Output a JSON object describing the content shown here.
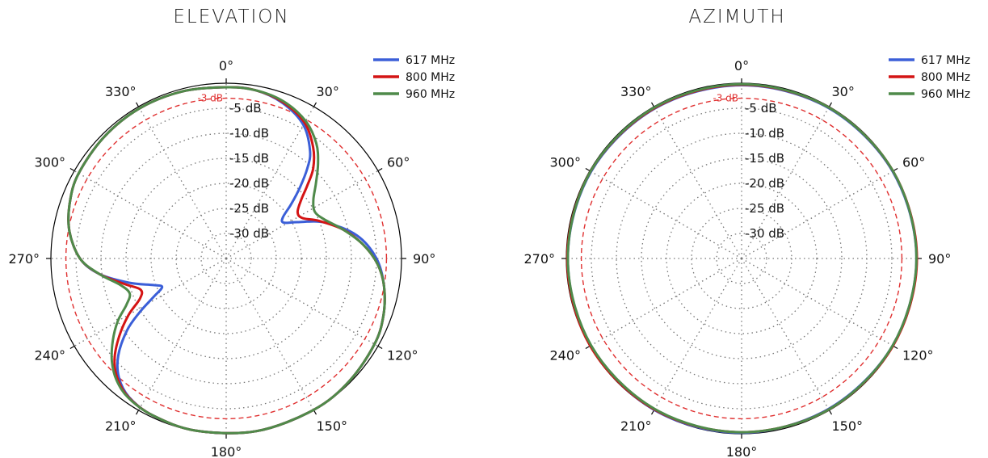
{
  "chart_data": [
    {
      "type": "polar-line",
      "title": "ELEVATION",
      "angle_unit": "°",
      "angle_ticks": [
        0,
        30,
        60,
        90,
        120,
        150,
        180,
        210,
        240,
        270,
        300,
        330
      ],
      "angle_tick_labels": [
        "0°",
        "30°",
        "60°",
        "90°",
        "120°",
        "150°",
        "180°",
        "210°",
        "240°",
        "270°",
        "300°",
        "330°"
      ],
      "radial_range_db": [
        -35,
        0
      ],
      "radial_ticks_db": [
        -5,
        -10,
        -15,
        -20,
        -25,
        -30
      ],
      "radial_tick_labels": [
        "-5 dB",
        "-10 dB",
        "-15 dB",
        "-20 dB",
        "-25 dB",
        "-30 dB"
      ],
      "reference_line": {
        "value_db": -3,
        "label": "-3 dB",
        "color": "#e03030"
      },
      "grid": true,
      "legend_position": "top-right",
      "series": [
        {
          "name": "617 MHz",
          "color": "#3b5fd8",
          "points": [
            [
              0,
              -0.8
            ],
            [
              10,
              -0.9
            ],
            [
              20,
              -2.0
            ],
            [
              30,
              -4.2
            ],
            [
              38,
              -7.8
            ],
            [
              42,
              -10.8
            ],
            [
              46,
              -14.5
            ],
            [
              50,
              -18.0
            ],
            [
              54,
              -21.0
            ],
            [
              58,
              -21.5
            ],
            [
              63,
              -19.0
            ],
            [
              70,
              -14.0
            ],
            [
              80,
              -8.5
            ],
            [
              90,
              -5.0
            ],
            [
              100,
              -3.0
            ],
            [
              110,
              -1.6
            ],
            [
              120,
              -0.8
            ],
            [
              135,
              -0.3
            ],
            [
              150,
              -0.1
            ],
            [
              170,
              0.0
            ],
            [
              190,
              -0.1
            ],
            [
              205,
              -0.4
            ],
            [
              215,
              -1.2
            ],
            [
              222,
              -3.0
            ],
            [
              228,
              -6.0
            ],
            [
              234,
              -10.5
            ],
            [
              238,
              -14.5
            ],
            [
              242,
              -18.5
            ],
            [
              246,
              -21.0
            ],
            [
              250,
              -19.5
            ],
            [
              256,
              -15.0
            ],
            [
              263,
              -9.5
            ],
            [
              270,
              -5.8
            ],
            [
              280,
              -3.2
            ],
            [
              290,
              -1.8
            ],
            [
              300,
              -1.0
            ],
            [
              315,
              -0.6
            ],
            [
              330,
              -0.4
            ],
            [
              345,
              -0.5
            ],
            [
              360,
              -0.8
            ]
          ]
        },
        {
          "name": "800 MHz",
          "color": "#d41414",
          "points": [
            [
              0,
              -0.8
            ],
            [
              10,
              -0.9
            ],
            [
              20,
              -1.8
            ],
            [
              30,
              -3.7
            ],
            [
              38,
              -6.8
            ],
            [
              44,
              -10.0
            ],
            [
              48,
              -13.2
            ],
            [
              52,
              -16.0
            ],
            [
              57,
              -18.0
            ],
            [
              62,
              -17.8
            ],
            [
              68,
              -15.0
            ],
            [
              76,
              -11.0
            ],
            [
              84,
              -7.6
            ],
            [
              92,
              -4.8
            ],
            [
              100,
              -3.0
            ],
            [
              110,
              -1.6
            ],
            [
              120,
              -0.8
            ],
            [
              135,
              -0.3
            ],
            [
              150,
              -0.1
            ],
            [
              170,
              0.0
            ],
            [
              190,
              -0.1
            ],
            [
              205,
              -0.4
            ],
            [
              215,
              -1.1
            ],
            [
              222,
              -2.6
            ],
            [
              228,
              -5.0
            ],
            [
              234,
              -8.6
            ],
            [
              240,
              -12.5
            ],
            [
              245,
              -16.0
            ],
            [
              250,
              -16.8
            ],
            [
              256,
              -14.0
            ],
            [
              263,
              -9.5
            ],
            [
              270,
              -5.8
            ],
            [
              280,
              -3.2
            ],
            [
              290,
              -1.8
            ],
            [
              300,
              -1.0
            ],
            [
              315,
              -0.6
            ],
            [
              330,
              -0.4
            ],
            [
              345,
              -0.5
            ],
            [
              360,
              -0.8
            ]
          ]
        },
        {
          "name": "960 MHz",
          "color": "#4f8a4a",
          "points": [
            [
              0,
              -0.8
            ],
            [
              10,
              -0.9
            ],
            [
              20,
              -1.6
            ],
            [
              30,
              -3.3
            ],
            [
              38,
              -5.8
            ],
            [
              44,
              -8.6
            ],
            [
              50,
              -11.6
            ],
            [
              56,
              -14.0
            ],
            [
              62,
              -15.0
            ],
            [
              68,
              -14.0
            ],
            [
              76,
              -11.0
            ],
            [
              84,
              -7.6
            ],
            [
              92,
              -4.8
            ],
            [
              100,
              -3.0
            ],
            [
              110,
              -1.6
            ],
            [
              120,
              -0.8
            ],
            [
              135,
              -0.3
            ],
            [
              150,
              -0.1
            ],
            [
              170,
              0.0
            ],
            [
              190,
              -0.1
            ],
            [
              205,
              -0.4
            ],
            [
              215,
              -1.0
            ],
            [
              222,
              -2.3
            ],
            [
              228,
              -4.3
            ],
            [
              234,
              -7.0
            ],
            [
              240,
              -10.0
            ],
            [
              245,
              -13.0
            ],
            [
              250,
              -14.5
            ],
            [
              256,
              -13.2
            ],
            [
              263,
              -9.5
            ],
            [
              270,
              -5.8
            ],
            [
              280,
              -3.2
            ],
            [
              290,
              -1.8
            ],
            [
              300,
              -1.0
            ],
            [
              315,
              -0.6
            ],
            [
              330,
              -0.4
            ],
            [
              345,
              -0.5
            ],
            [
              360,
              -0.8
            ]
          ]
        }
      ]
    },
    {
      "type": "polar-line",
      "title": "AZIMUTH",
      "angle_unit": "°",
      "angle_ticks": [
        0,
        30,
        60,
        90,
        120,
        150,
        180,
        210,
        240,
        270,
        300,
        330
      ],
      "angle_tick_labels": [
        "0°",
        "30°",
        "60°",
        "90°",
        "120°",
        "150°",
        "180°",
        "210°",
        "240°",
        "270°",
        "300°",
        "330°"
      ],
      "radial_range_db": [
        -35,
        0
      ],
      "radial_ticks_db": [
        -5,
        -10,
        -15,
        -20,
        -25,
        -30
      ],
      "radial_tick_labels": [
        "-5 dB",
        "-10 dB",
        "-15 dB",
        "-20 dB",
        "-25 dB",
        "-30 dB"
      ],
      "reference_line": {
        "value_db": -3,
        "label": "-3 dB",
        "color": "#e03030"
      },
      "grid": true,
      "legend_position": "top-right",
      "series": [
        {
          "name": "617 MHz",
          "color": "#3b5fd8",
          "points": [
            [
              0,
              -0.4
            ],
            [
              30,
              -0.3
            ],
            [
              60,
              -0.2
            ],
            [
              90,
              -0.1
            ],
            [
              120,
              -0.2
            ],
            [
              150,
              -0.3
            ],
            [
              180,
              -0.2
            ],
            [
              210,
              -0.1
            ],
            [
              240,
              -0.2
            ],
            [
              270,
              -0.3
            ],
            [
              300,
              -0.3
            ],
            [
              330,
              -0.4
            ],
            [
              360,
              -0.4
            ]
          ]
        },
        {
          "name": "800 MHz",
          "color": "#d41414",
          "points": [
            [
              0,
              -0.3
            ],
            [
              30,
              -0.2
            ],
            [
              60,
              -0.1
            ],
            [
              90,
              0.0
            ],
            [
              120,
              -0.1
            ],
            [
              150,
              -0.2
            ],
            [
              180,
              -0.3
            ],
            [
              210,
              -0.2
            ],
            [
              240,
              -0.1
            ],
            [
              270,
              -0.2
            ],
            [
              300,
              -0.2
            ],
            [
              330,
              -0.3
            ],
            [
              360,
              -0.3
            ]
          ]
        },
        {
          "name": "960 MHz",
          "color": "#4f8a4a",
          "points": [
            [
              0,
              -0.2
            ],
            [
              30,
              -0.2
            ],
            [
              60,
              -0.1
            ],
            [
              90,
              -0.1
            ],
            [
              120,
              -0.2
            ],
            [
              150,
              -0.2
            ],
            [
              180,
              -0.3
            ],
            [
              210,
              -0.3
            ],
            [
              240,
              -0.3
            ],
            [
              270,
              -0.3
            ],
            [
              300,
              -0.2
            ],
            [
              330,
              -0.2
            ],
            [
              360,
              -0.2
            ]
          ]
        }
      ]
    }
  ]
}
